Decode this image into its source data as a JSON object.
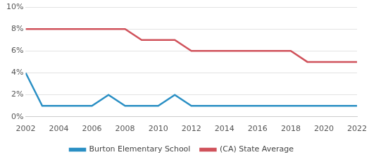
{
  "chart_data": {
    "type": "line",
    "x": [
      2002,
      2003,
      2004,
      2005,
      2006,
      2007,
      2008,
      2009,
      2010,
      2011,
      2012,
      2013,
      2014,
      2015,
      2016,
      2017,
      2018,
      2019,
      2020,
      2021,
      2022
    ],
    "series": [
      {
        "name": "Burton Elementary School",
        "color": "#2a8fc4",
        "values": [
          4,
          1,
          1,
          1,
          1,
          2,
          1,
          1,
          1,
          2,
          1,
          1,
          1,
          1,
          1,
          1,
          1,
          1,
          1,
          1,
          1
        ]
      },
      {
        "name": "(CA) State Average",
        "color": "#d0525b",
        "values": [
          8,
          8,
          8,
          8,
          8,
          8,
          8,
          7,
          7,
          7,
          6,
          6,
          6,
          6,
          6,
          6,
          6,
          5,
          5,
          5,
          5
        ]
      }
    ],
    "xlim": [
      2002,
      2022
    ],
    "xticks": [
      2002,
      2004,
      2006,
      2008,
      2010,
      2012,
      2014,
      2016,
      2018,
      2020,
      2022
    ],
    "ylim": [
      0,
      10
    ],
    "yticks": [
      {
        "value": 0,
        "label": "0%"
      },
      {
        "value": 2,
        "label": "2%"
      },
      {
        "value": 4,
        "label": "4%"
      },
      {
        "value": 6,
        "label": "6%"
      },
      {
        "value": 8,
        "label": "8%"
      },
      {
        "value": 10,
        "label": "10%"
      }
    ],
    "grid": true,
    "legend": "bottom"
  }
}
